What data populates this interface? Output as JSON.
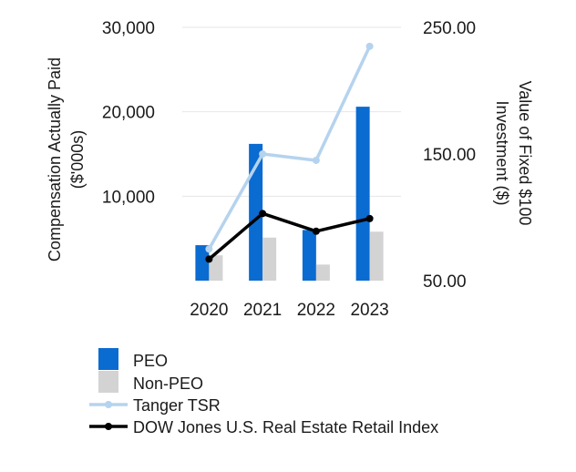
{
  "chart_data": {
    "type": "bar",
    "categories": [
      "2020",
      "2021",
      "2022",
      "2023"
    ],
    "left_axis": {
      "title_lines": [
        "Compensation Actually Paid",
        "($'000s)"
      ],
      "ticks": [
        10000,
        20000,
        30000
      ],
      "tick_labels": [
        "10,000",
        "20,000",
        "30,000"
      ],
      "ylim": [
        0,
        30000
      ]
    },
    "right_axis": {
      "title_lines": [
        "Value of Fixed $100",
        "Investment ($)"
      ],
      "ticks": [
        50,
        150,
        250
      ],
      "tick_labels": [
        "50.00",
        "150.00",
        "250.00"
      ],
      "ylim": [
        50,
        250
      ]
    },
    "series": [
      {
        "name": "PEO",
        "type": "bar",
        "axis": "left",
        "color": "#0a6bd1",
        "values": [
          4200,
          16200,
          6000,
          20600
        ]
      },
      {
        "name": "Non-PEO",
        "type": "bar",
        "axis": "left",
        "color": "#d3d3d3",
        "values": [
          3000,
          5100,
          1900,
          5800
        ]
      },
      {
        "name": "Tanger TSR",
        "type": "line",
        "axis": "right",
        "color": "#b5d3ee",
        "values": [
          75,
          150,
          145,
          235
        ]
      },
      {
        "name": "DOW Jones U.S. Real Estate Retail Index",
        "type": "line",
        "axis": "right",
        "color": "#000000",
        "values": [
          67,
          103,
          89,
          99
        ]
      }
    ],
    "grid": true,
    "legend_position": "bottom-left"
  }
}
